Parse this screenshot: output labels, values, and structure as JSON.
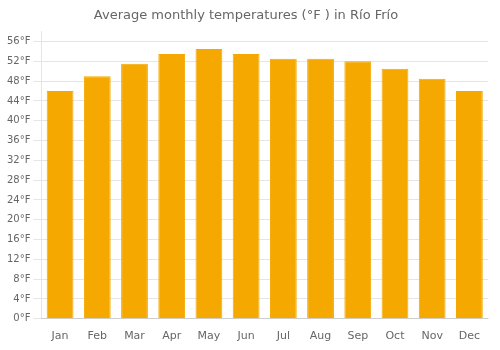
{
  "chart_data": {
    "type": "bar",
    "title": "Average monthly temperatures (°F ) in Río Frío",
    "categories": [
      "Jan",
      "Feb",
      "Mar",
      "Apr",
      "May",
      "Jun",
      "Jul",
      "Aug",
      "Sep",
      "Oct",
      "Nov",
      "Dec"
    ],
    "values": [
      46.0,
      49.0,
      51.5,
      53.5,
      54.5,
      53.5,
      52.5,
      52.5,
      52.0,
      50.5,
      48.5,
      46.0
    ],
    "color": "#F5A800",
    "ylim": [
      0,
      58
    ],
    "yticks": [
      {
        "value": 0,
        "label": "0°F"
      },
      {
        "value": 4,
        "label": "4°F"
      },
      {
        "value": 8,
        "label": "8°F"
      },
      {
        "value": 12,
        "label": "12°F"
      },
      {
        "value": 16,
        "label": "16°F"
      },
      {
        "value": 20,
        "label": "20°F"
      },
      {
        "value": 24,
        "label": "24°F"
      },
      {
        "value": 28,
        "label": "28°F"
      },
      {
        "value": 32,
        "label": "32°F"
      },
      {
        "value": 36,
        "label": "36°F"
      },
      {
        "value": 40,
        "label": "40°F"
      },
      {
        "value": 44,
        "label": "44°F"
      },
      {
        "value": 48,
        "label": "48°F"
      },
      {
        "value": 52,
        "label": "52°F"
      },
      {
        "value": 56,
        "label": "56°F"
      }
    ],
    "grid": true
  }
}
